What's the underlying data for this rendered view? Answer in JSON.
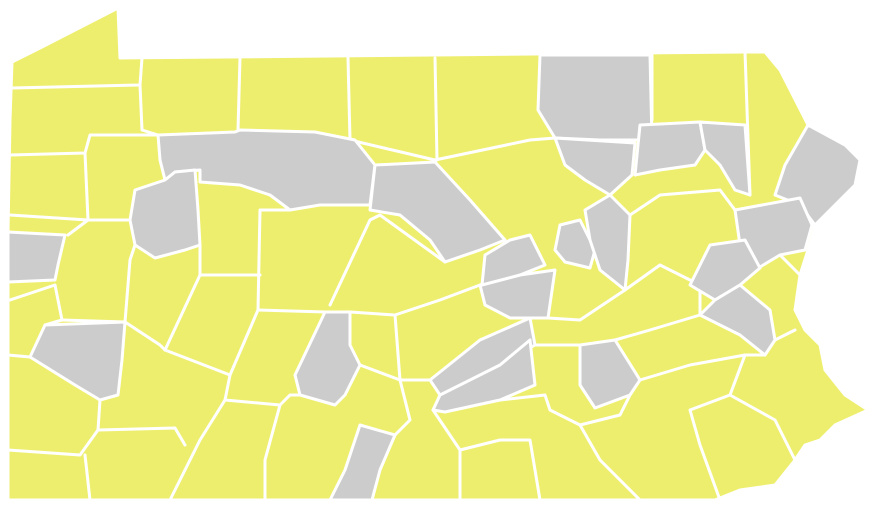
{
  "colors": {
    "yellow_region": "#eeee6e",
    "gray_region": "#cccccc",
    "border": "#ffffff",
    "background": "#ffffff"
  }
}
